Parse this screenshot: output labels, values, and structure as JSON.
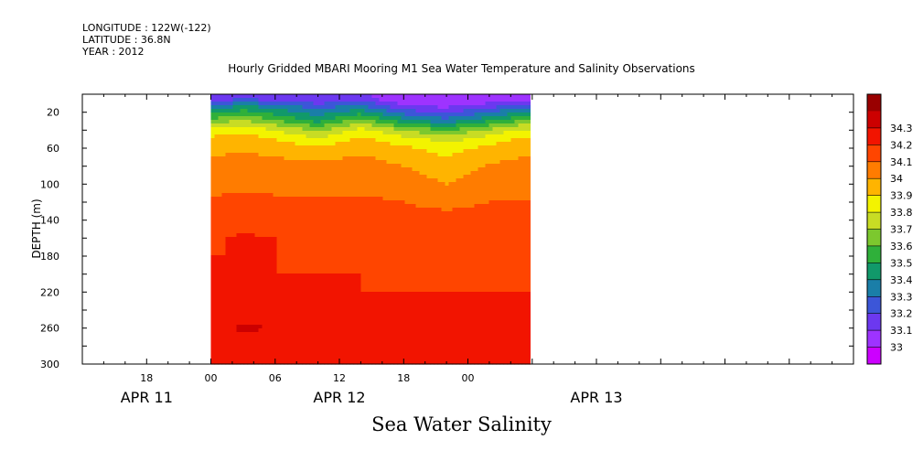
{
  "header": {
    "longitude": "LONGITUDE : 122W(-122)",
    "latitude": "LATITUDE : 36.8N",
    "year": "YEAR : 2012"
  },
  "chart_data": {
    "type": "heatmap",
    "title": "Hourly Gridded MBARI Mooring M1 Sea Water Temperature and Salinity Observations",
    "variable_label": "Sea Water Salinity",
    "ylabel": "DEPTH (m)",
    "xlabel": "",
    "y_inverted": true,
    "ylim": [
      0,
      300
    ],
    "y_ticks": [
      20,
      60,
      100,
      140,
      180,
      220,
      260,
      300
    ],
    "x_range_hours": [
      -12,
      60
    ],
    "x_tick_labels": [
      {
        "hour": -6,
        "label": "18"
      },
      {
        "hour": 0,
        "label": "00"
      },
      {
        "hour": 6,
        "label": "06"
      },
      {
        "hour": 12,
        "label": "12"
      },
      {
        "hour": 18,
        "label": "18"
      },
      {
        "hour": 24,
        "label": "00"
      }
    ],
    "date_labels": [
      {
        "hour": -6,
        "label": "APR 11"
      },
      {
        "hour": 12,
        "label": "APR 12"
      },
      {
        "hour": 36,
        "label": "APR 13"
      }
    ],
    "colorbar": {
      "levels": [
        "33",
        "33.1",
        "33.2",
        "33.3",
        "33.4",
        "33.5",
        "33.6",
        "33.7",
        "33.8",
        "33.9",
        "34",
        "34.1",
        "34.2",
        "34.3"
      ],
      "colors": [
        "#cc00ff",
        "#9e33ff",
        "#6c38f0",
        "#3c56d8",
        "#1a7ea8",
        "#11996a",
        "#2fb03a",
        "#7cc82e",
        "#c8dc24",
        "#f3f300",
        "#ffb400",
        "#ff7c00",
        "#ff4500",
        "#f21400",
        "#cc0000",
        "#990000"
      ]
    },
    "profile_depths": [
      5,
      15,
      30,
      40,
      50,
      60,
      70,
      80,
      100,
      120,
      140,
      160,
      180,
      200,
      220,
      240,
      260,
      280,
      300
    ],
    "profiles": [
      {
        "hour": 0,
        "salinity": [
          33.12,
          33.35,
          33.65,
          33.85,
          33.92,
          33.97,
          34.0,
          34.02,
          34.06,
          34.12,
          34.16,
          34.19,
          34.2,
          34.2,
          34.2,
          34.25,
          34.28,
          34.25,
          34.2
        ]
      },
      {
        "hour": 3,
        "salinity": [
          33.2,
          33.45,
          33.72,
          33.88,
          33.95,
          33.99,
          34.02,
          34.04,
          34.08,
          34.13,
          34.17,
          34.21,
          34.2,
          34.2,
          34.21,
          34.26,
          34.31,
          34.27,
          34.21
        ]
      },
      {
        "hour": 6,
        "salinity": [
          33.15,
          33.38,
          33.62,
          33.8,
          33.9,
          33.96,
          34.0,
          34.03,
          34.07,
          34.12,
          34.16,
          34.2,
          34.2,
          34.2,
          34.21,
          34.26,
          34.3,
          34.26,
          34.2
        ]
      },
      {
        "hour": 10,
        "salinity": [
          33.1,
          33.28,
          33.48,
          33.68,
          33.82,
          33.92,
          33.98,
          34.02,
          34.06,
          34.11,
          34.15,
          34.17,
          34.19,
          34.2,
          34.2,
          34.24,
          34.27,
          34.24,
          34.2
        ]
      },
      {
        "hour": 14,
        "salinity": [
          33.14,
          33.36,
          33.66,
          33.84,
          33.92,
          33.97,
          34.01,
          34.03,
          34.07,
          34.12,
          34.16,
          34.18,
          34.19,
          34.2,
          34.2,
          34.25,
          34.28,
          34.25,
          34.2
        ]
      },
      {
        "hour": 18,
        "salinity": [
          33.0,
          33.15,
          33.45,
          33.7,
          33.84,
          33.92,
          33.97,
          34.0,
          34.05,
          34.1,
          34.15,
          34.17,
          34.18,
          34.19,
          34.2,
          34.25,
          34.28,
          34.25,
          34.2
        ]
      },
      {
        "hour": 22,
        "salinity": [
          33.0,
          33.1,
          33.35,
          33.6,
          33.76,
          33.86,
          33.9,
          33.95,
          34.0,
          34.06,
          34.15,
          34.17,
          34.18,
          34.19,
          34.2,
          34.24,
          34.27,
          34.24,
          34.2
        ]
      },
      {
        "hour": 26,
        "salinity": [
          33.0,
          33.2,
          33.5,
          33.72,
          33.85,
          33.93,
          33.98,
          34.01,
          34.05,
          34.1,
          34.15,
          34.18,
          34.18,
          34.19,
          34.2,
          34.25,
          34.3,
          34.26,
          34.2
        ]
      },
      {
        "hour": 29,
        "salinity": [
          33.05,
          33.28,
          33.62,
          33.82,
          33.92,
          33.96,
          34.0,
          34.02,
          34.06,
          34.1,
          34.15,
          34.18,
          34.18,
          34.19,
          34.2,
          34.24,
          34.28,
          34.25,
          34.2
        ]
      }
    ]
  }
}
